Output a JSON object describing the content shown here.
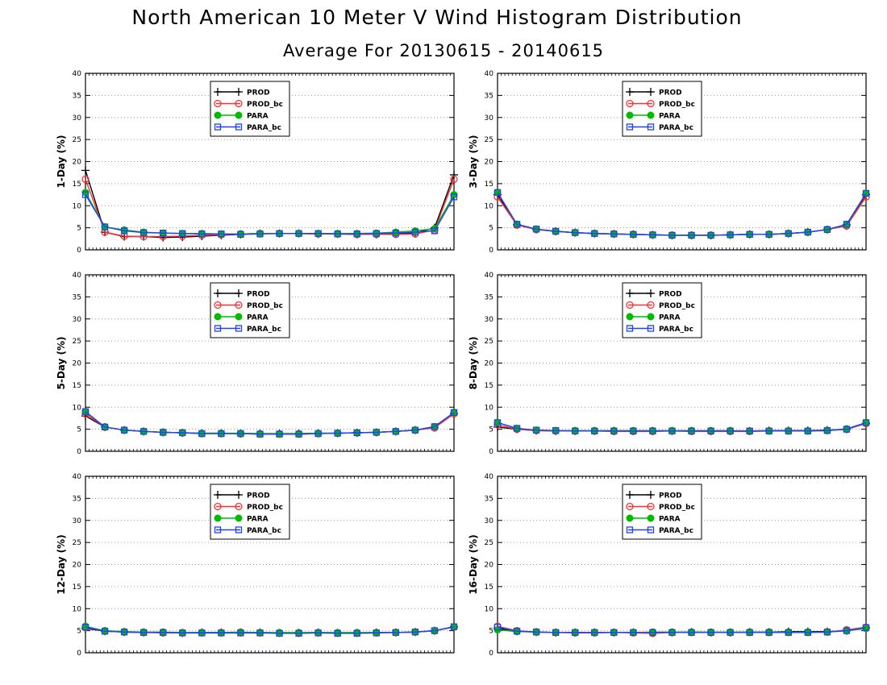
{
  "title": "North American 10 Meter V Wind Histogram Distribution",
  "subtitle": "Average For 20130615 - 20140615",
  "colors": {
    "PROD": "#000000",
    "PROD_bc": "#ff3030",
    "PARA": "#00bb00",
    "PARA_bc": "#2040ff"
  },
  "chart_data": [
    {
      "type": "line",
      "ylabel": "1-Day (%)",
      "ylim": [
        0,
        40
      ],
      "yticks": [
        0,
        5,
        10,
        15,
        20,
        25,
        30,
        35,
        40
      ],
      "grid": true,
      "legend_position": "top-left",
      "series": [
        {
          "name": "PROD",
          "marker": "plus",
          "values": [
            18,
            4,
            3,
            3,
            2.8,
            2.9,
            3.1,
            3.3,
            3.5,
            3.7,
            3.7,
            3.7,
            3.6,
            3.6,
            3.5,
            3.5,
            3.6,
            3.8,
            5,
            17
          ]
        },
        {
          "name": "PROD_bc",
          "marker": "circle",
          "values": [
            16,
            4,
            3.1,
            3,
            3,
            3.1,
            3.3,
            3.4,
            3.6,
            3.7,
            3.7,
            3.7,
            3.6,
            3.6,
            3.5,
            3.5,
            3.5,
            3.6,
            4.5,
            16
          ]
        },
        {
          "name": "PARA",
          "marker": "dot",
          "values": [
            13,
            5.2,
            4.5,
            4,
            3.8,
            3.7,
            3.7,
            3.6,
            3.6,
            3.7,
            3.7,
            3.7,
            3.7,
            3.7,
            3.7,
            3.8,
            4,
            4.3,
            4.8,
            12.5
          ]
        },
        {
          "name": "PARA_bc",
          "marker": "square",
          "values": [
            12.5,
            5.2,
            4.3,
            3.9,
            3.8,
            3.7,
            3.6,
            3.6,
            3.5,
            3.6,
            3.7,
            3.7,
            3.7,
            3.6,
            3.6,
            3.7,
            3.8,
            4,
            4.3,
            12
          ]
        }
      ]
    },
    {
      "type": "line",
      "ylabel": "3-Day (%)",
      "ylim": [
        0,
        40
      ],
      "yticks": [
        0,
        5,
        10,
        15,
        20,
        25,
        30,
        35,
        40
      ],
      "grid": true,
      "legend_position": "top-left",
      "series": [
        {
          "name": "PROD",
          "marker": "plus",
          "values": [
            12.5,
            5.7,
            4.6,
            4.2,
            3.9,
            3.7,
            3.6,
            3.5,
            3.4,
            3.3,
            3.3,
            3.3,
            3.4,
            3.5,
            3.5,
            3.7,
            4,
            4.6,
            5.7,
            12.5
          ]
        },
        {
          "name": "PROD_bc",
          "marker": "circle",
          "values": [
            12,
            5.6,
            4.6,
            4.2,
            3.9,
            3.7,
            3.6,
            3.5,
            3.4,
            3.3,
            3.3,
            3.3,
            3.4,
            3.5,
            3.5,
            3.7,
            4,
            4.6,
            5.4,
            12
          ]
        },
        {
          "name": "PARA",
          "marker": "dot",
          "values": [
            13,
            5.8,
            4.7,
            4.2,
            3.9,
            3.7,
            3.6,
            3.5,
            3.4,
            3.3,
            3.3,
            3.3,
            3.4,
            3.5,
            3.5,
            3.7,
            4,
            4.6,
            5.7,
            12.8
          ]
        },
        {
          "name": "PARA_bc",
          "marker": "square",
          "values": [
            13,
            5.8,
            4.7,
            4.2,
            3.9,
            3.7,
            3.6,
            3.5,
            3.4,
            3.3,
            3.3,
            3.3,
            3.4,
            3.5,
            3.5,
            3.7,
            4,
            4.6,
            5.8,
            12.8
          ]
        }
      ]
    },
    {
      "type": "line",
      "ylabel": "5-Day (%)",
      "ylim": [
        0,
        40
      ],
      "yticks": [
        0,
        5,
        10,
        15,
        20,
        25,
        30,
        35,
        40
      ],
      "grid": true,
      "legend_position": "top-left",
      "series": [
        {
          "name": "PROD",
          "marker": "plus",
          "values": [
            8,
            5.5,
            4.8,
            4.5,
            4.3,
            4.2,
            4.1,
            4.1,
            4,
            4,
            4,
            4,
            4.1,
            4.1,
            4.2,
            4.3,
            4.5,
            4.8,
            5.4,
            8.5
          ]
        },
        {
          "name": "PROD_bc",
          "marker": "circle",
          "values": [
            8.5,
            5.5,
            4.8,
            4.5,
            4.3,
            4.2,
            4,
            4,
            4,
            3.9,
            3.9,
            3.9,
            4,
            4.1,
            4.2,
            4.3,
            4.5,
            4.8,
            5.3,
            8.5
          ]
        },
        {
          "name": "PARA",
          "marker": "dot",
          "values": [
            9,
            5.5,
            4.8,
            4.5,
            4.3,
            4.2,
            4.1,
            4.1,
            4.1,
            4,
            4,
            4,
            4.1,
            4.1,
            4.2,
            4.3,
            4.5,
            4.8,
            5.6,
            8.8
          ]
        },
        {
          "name": "PARA_bc",
          "marker": "square",
          "values": [
            9,
            5.5,
            4.8,
            4.5,
            4.3,
            4.2,
            4,
            4,
            4,
            3.9,
            3.9,
            3.9,
            4,
            4.1,
            4.2,
            4.3,
            4.5,
            4.8,
            5.6,
            8.8
          ]
        }
      ]
    },
    {
      "type": "line",
      "ylabel": "8-Day (%)",
      "ylim": [
        0,
        40
      ],
      "yticks": [
        0,
        5,
        10,
        15,
        20,
        25,
        30,
        35,
        40
      ],
      "grid": true,
      "legend_position": "top-left",
      "series": [
        {
          "name": "PROD",
          "marker": "plus",
          "values": [
            5.5,
            5,
            4.7,
            4.6,
            4.6,
            4.6,
            4.6,
            4.6,
            4.6,
            4.6,
            4.6,
            4.6,
            4.6,
            4.6,
            4.7,
            4.7,
            4.7,
            4.8,
            5,
            6.3
          ]
        },
        {
          "name": "PROD_bc",
          "marker": "circle",
          "values": [
            6,
            5,
            4.7,
            4.6,
            4.6,
            4.6,
            4.5,
            4.5,
            4.5,
            4.6,
            4.5,
            4.5,
            4.5,
            4.5,
            4.6,
            4.6,
            4.6,
            4.7,
            5,
            6.3
          ]
        },
        {
          "name": "PARA",
          "marker": "dot",
          "values": [
            6.5,
            5.2,
            4.8,
            4.7,
            4.7,
            4.7,
            4.7,
            4.7,
            4.7,
            4.7,
            4.7,
            4.7,
            4.7,
            4.6,
            4.6,
            4.6,
            4.6,
            4.7,
            5.1,
            6.5
          ]
        },
        {
          "name": "PARA_bc",
          "marker": "square",
          "values": [
            6.5,
            5.2,
            4.8,
            4.7,
            4.6,
            4.6,
            4.6,
            4.6,
            4.6,
            4.6,
            4.6,
            4.6,
            4.6,
            4.6,
            4.6,
            4.6,
            4.6,
            4.7,
            5,
            6.5
          ]
        }
      ]
    },
    {
      "type": "line",
      "ylabel": "12-Day (%)",
      "ylim": [
        0,
        40
      ],
      "yticks": [
        0,
        5,
        10,
        15,
        20,
        25,
        30,
        35,
        40
      ],
      "grid": true,
      "legend_position": "top-left",
      "series": [
        {
          "name": "PROD",
          "marker": "plus",
          "values": [
            5.5,
            4.9,
            4.7,
            4.6,
            4.6,
            4.5,
            4.6,
            4.6,
            4.6,
            4.6,
            4.5,
            4.5,
            4.6,
            4.5,
            4.5,
            4.6,
            4.6,
            4.7,
            5,
            5.9
          ]
        },
        {
          "name": "PROD_bc",
          "marker": "circle",
          "values": [
            5.7,
            4.9,
            4.7,
            4.6,
            4.5,
            4.5,
            4.5,
            4.5,
            4.5,
            4.5,
            4.5,
            4.5,
            4.5,
            4.5,
            4.5,
            4.5,
            4.6,
            4.7,
            5,
            5.8
          ]
        },
        {
          "name": "PARA",
          "marker": "dot",
          "values": [
            6,
            5,
            4.8,
            4.7,
            4.7,
            4.6,
            4.6,
            4.6,
            4.7,
            4.6,
            4.6,
            4.6,
            4.6,
            4.6,
            4.6,
            4.6,
            4.6,
            4.7,
            5,
            5.9
          ]
        },
        {
          "name": "PARA_bc",
          "marker": "square",
          "values": [
            5.8,
            4.9,
            4.7,
            4.6,
            4.6,
            4.5,
            4.5,
            4.5,
            4.5,
            4.5,
            4.4,
            4.4,
            4.5,
            4.4,
            4.4,
            4.5,
            4.6,
            4.7,
            5,
            5.9
          ]
        }
      ]
    },
    {
      "type": "line",
      "ylabel": "16-Day (%)",
      "ylim": [
        0,
        40
      ],
      "yticks": [
        0,
        5,
        10,
        15,
        20,
        25,
        30,
        35,
        40
      ],
      "grid": true,
      "legend_position": "top-left",
      "series": [
        {
          "name": "PROD",
          "marker": "plus",
          "values": [
            5.5,
            4.9,
            4.7,
            4.6,
            4.6,
            4.6,
            4.6,
            4.6,
            4.6,
            4.6,
            4.7,
            4.6,
            4.6,
            4.7,
            4.7,
            4.8,
            4.8,
            4.8,
            5,
            5.6
          ]
        },
        {
          "name": "PROD_bc",
          "marker": "circle",
          "values": [
            6,
            5,
            4.7,
            4.6,
            4.5,
            4.5,
            4.6,
            4.5,
            4.4,
            4.6,
            4.6,
            4.6,
            4.6,
            4.6,
            4.6,
            4.6,
            4.6,
            4.7,
            5.2,
            5.8
          ]
        },
        {
          "name": "PARA",
          "marker": "dot",
          "values": [
            5.2,
            4.8,
            4.7,
            4.6,
            4.6,
            4.6,
            4.6,
            4.6,
            4.7,
            4.7,
            4.7,
            4.7,
            4.7,
            4.7,
            4.7,
            4.7,
            4.7,
            4.7,
            5,
            5.5
          ]
        },
        {
          "name": "PARA_bc",
          "marker": "square",
          "values": [
            5.8,
            4.9,
            4.7,
            4.6,
            4.6,
            4.6,
            4.6,
            4.6,
            4.6,
            4.6,
            4.6,
            4.6,
            4.6,
            4.6,
            4.6,
            4.6,
            4.6,
            4.7,
            5,
            5.7
          ]
        }
      ]
    }
  ]
}
